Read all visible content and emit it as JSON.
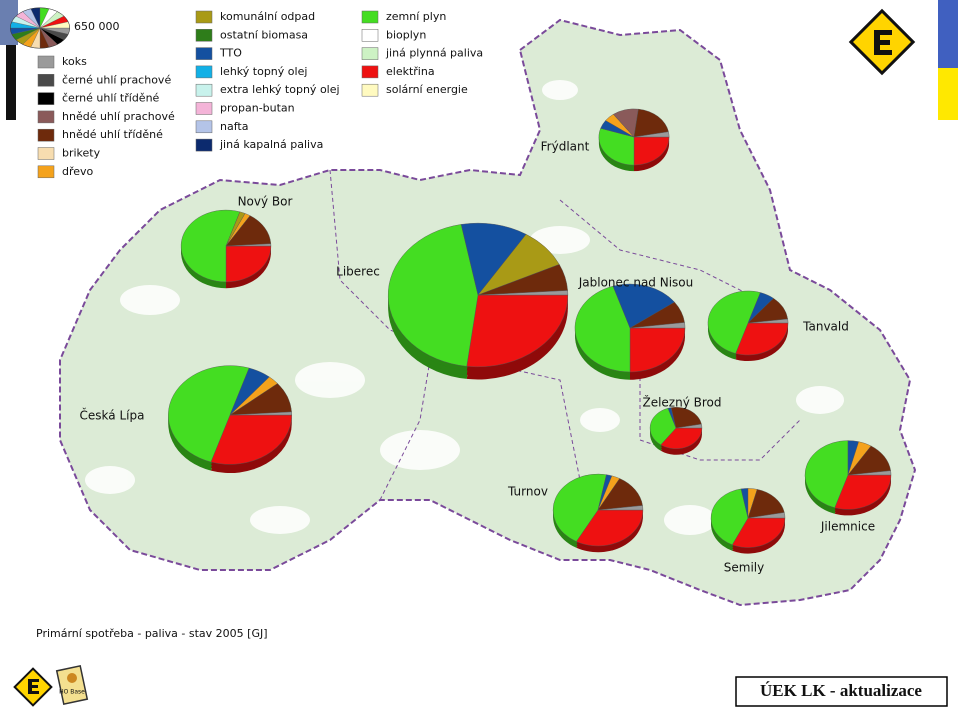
{
  "chart_data": {
    "type": "pie-map",
    "caption": "Primární spotřeba - paliva - stav 2005 [GJ]",
    "size_reference": {
      "value": 650000,
      "label": "650 000"
    },
    "fuels": [
      {
        "name": "koks",
        "color": "#9a9a9a"
      },
      {
        "name": "černé uhlí prachové",
        "color": "#4a4a4a"
      },
      {
        "name": "černé uhlí tříděné",
        "color": "#000000"
      },
      {
        "name": "hnědé uhlí prachové",
        "color": "#8a5a5a"
      },
      {
        "name": "hnědé uhlí tříděné",
        "color": "#6e2a0c"
      },
      {
        "name": "brikety",
        "color": "#f7ddb0"
      },
      {
        "name": "dřevo",
        "color": "#f4a21c"
      },
      {
        "name": "komunální odpad",
        "color": "#a99a16"
      },
      {
        "name": "ostatní biomasa",
        "color": "#2e7d1a"
      },
      {
        "name": "TTO",
        "color": "#1450a0"
      },
      {
        "name": "lehký topný olej",
        "color": "#12b0e6"
      },
      {
        "name": "extra lehký topný olej",
        "color": "#c8f2ec"
      },
      {
        "name": "propan-butan",
        "color": "#f4b4d8"
      },
      {
        "name": "nafta",
        "color": "#b4c4e8"
      },
      {
        "name": "jiná kapalná paliva",
        "color": "#0c2a6e"
      },
      {
        "name": "zemní plyn",
        "color": "#44dd22"
      },
      {
        "name": "bioplyn",
        "color": "#ffffff"
      },
      {
        "name": "jiná plynná paliva",
        "color": "#cdf2c4"
      },
      {
        "name": "elektřina",
        "color": "#ee1111"
      },
      {
        "name": "solární energie",
        "color": "#fffac0"
      }
    ],
    "towns": [
      {
        "name": "Liberec",
        "values": [
          72000,
          0,
          0,
          0,
          432000,
          0,
          0,
          648000,
          0,
          864000,
          0,
          0,
          0,
          0,
          0,
          3240000,
          0,
          0,
          1944000,
          0
        ]
      },
      {
        "name": "Česká Lípa",
        "values": [
          34000,
          0,
          0,
          0,
          340000,
          0,
          102000,
          0,
          0,
          204000,
          0,
          0,
          0,
          0,
          0,
          1700000,
          0,
          0,
          1020000,
          0
        ]
      },
      {
        "name": "Jablonec nad Nisou",
        "values": [
          54000,
          0,
          0,
          0,
          216000,
          0,
          0,
          0,
          0,
          540000,
          0,
          0,
          0,
          0,
          0,
          1215000,
          0,
          0,
          675000,
          0
        ]
      },
      {
        "name": "Nový Bor",
        "values": [
          18000,
          0,
          0,
          0,
          270000,
          0,
          36000,
          36000,
          0,
          0,
          0,
          0,
          0,
          0,
          0,
          990000,
          0,
          0,
          450000,
          0
        ]
      },
      {
        "name": "Turnov",
        "values": [
          36000,
          0,
          0,
          0,
          270000,
          0,
          54000,
          0,
          0,
          36000,
          0,
          0,
          0,
          0,
          0,
          810000,
          0,
          0,
          594000,
          0
        ]
      },
      {
        "name": "Jilemnice",
        "values": [
          33000,
          0,
          0,
          0,
          231000,
          0,
          82500,
          0,
          0,
          66000,
          0,
          0,
          0,
          0,
          0,
          742500,
          0,
          0,
          495000,
          0
        ]
      },
      {
        "name": "Tanvald",
        "values": [
          28600,
          0,
          0,
          0,
          171600,
          0,
          0,
          0,
          0,
          85800,
          0,
          0,
          0,
          0,
          0,
          715000,
          0,
          0,
          429000,
          0
        ]
      },
      {
        "name": "Semily",
        "values": [
          36600,
          0,
          0,
          0,
          219600,
          0,
          48800,
          0,
          0,
          36600,
          0,
          0,
          0,
          0,
          0,
          488000,
          0,
          0,
          390400,
          0
        ]
      },
      {
        "name": "Frýdlant",
        "values": [
          33000,
          0,
          0,
          132000,
          220000,
          0,
          55000,
          0,
          0,
          55000,
          0,
          0,
          0,
          0,
          0,
          330000,
          0,
          0,
          275000,
          0
        ]
      },
      {
        "name": "Železný Brod",
        "values": [
          18000,
          0,
          0,
          0,
          150000,
          0,
          0,
          0,
          0,
          12000,
          0,
          0,
          0,
          0,
          0,
          210000,
          0,
          0,
          210000,
          0
        ]
      }
    ],
    "badge": "HO Base",
    "footer": "ÚEK LK - aktualizace"
  }
}
